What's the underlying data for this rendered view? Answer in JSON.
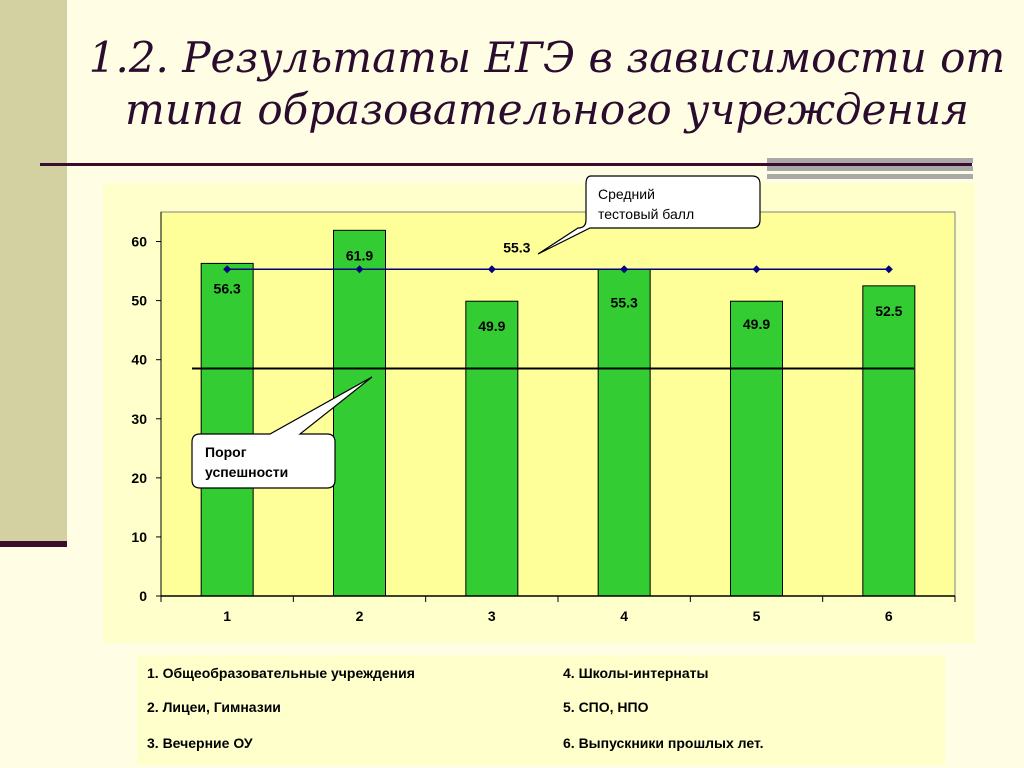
{
  "slide": {
    "title_line1": "1.2. Результаты ЕГЭ в зависимости от",
    "title_line2": "типа образовательного учреждения"
  },
  "colors": {
    "bar": "#33cc33",
    "average_line": "#000080",
    "threshold_line": "#000000",
    "plot_bg": "#ffff99"
  },
  "chart_data": {
    "type": "bar",
    "categories": [
      "1",
      "2",
      "3",
      "4",
      "5",
      "6"
    ],
    "values": [
      56.3,
      61.9,
      49.9,
      55.3,
      49.9,
      52.5
    ],
    "value_labels": [
      "56.3",
      "61.9",
      "49.9",
      "55.3",
      "49.9",
      "52.5"
    ],
    "average": {
      "value": 55.3,
      "label": "55.3"
    },
    "threshold": {
      "value": 38.5
    },
    "ylim": [
      0,
      60
    ],
    "yticks": [
      "0",
      "10",
      "20",
      "30",
      "40",
      "50",
      "60"
    ],
    "grid": false,
    "callouts": {
      "average": {
        "line1": "Средний",
        "line2": "тестовый балл"
      },
      "threshold": {
        "line1": "Порог",
        "line2": "успешности"
      }
    }
  },
  "legend": [
    "1. Общеобразовательные учреждения",
    "2. Лицеи, Гимназии",
    "3. Вечерние ОУ",
    "4. Школы-интернаты",
    "5. СПО, НПО",
    "6. Выпускники прошлых лет."
  ]
}
